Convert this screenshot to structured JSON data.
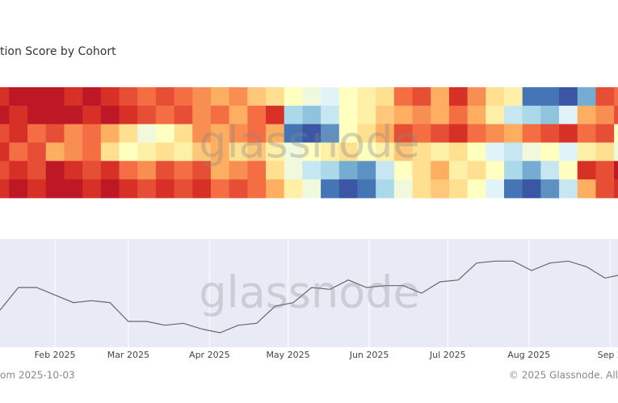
{
  "chart_data": [
    {
      "type": "heatmap",
      "title": "tion Score by Cohort",
      "x": [
        "2025-01-11",
        "2025-01-18",
        "2025-01-25",
        "2025-02-01",
        "2025-02-08",
        "2025-02-15",
        "2025-02-22",
        "2025-03-01",
        "2025-03-08",
        "2025-03-15",
        "2025-03-22",
        "2025-03-29",
        "2025-04-05",
        "2025-04-12",
        "2025-04-19",
        "2025-04-26",
        "2025-05-03",
        "2025-05-10",
        "2025-05-17",
        "2025-05-24",
        "2025-05-31",
        "2025-06-07",
        "2025-06-14",
        "2025-06-21",
        "2025-06-28",
        "2025-07-05",
        "2025-07-12",
        "2025-07-19",
        "2025-07-26",
        "2025-08-02",
        "2025-08-09",
        "2025-08-16",
        "2025-08-23",
        "2025-08-30",
        "2025-09-06"
      ],
      "xlim": [
        "2025-01-11",
        "2025-09-04"
      ],
      "zlim": [
        0,
        1
      ],
      "colorscale": [
        "#313695",
        "#4575b4",
        "#74add1",
        "#abd9e9",
        "#e0f3f8",
        "#ffffbf",
        "#fee090",
        "#fdae61",
        "#f46d43",
        "#d73027",
        "#a50026"
      ],
      "z": [
        [
          0.9,
          0.95,
          0.95,
          0.95,
          0.9,
          0.95,
          0.9,
          0.85,
          0.8,
          0.85,
          0.8,
          0.75,
          0.7,
          0.75,
          0.65,
          0.6,
          0.5,
          0.45,
          0.4,
          0.5,
          0.55,
          0.6,
          0.8,
          0.85,
          0.7,
          0.9,
          0.75,
          0.6,
          0.55,
          0.1,
          0.1,
          0.05,
          0.2,
          0.85,
          0.8
        ],
        [
          0.95,
          0.9,
          0.95,
          0.95,
          0.95,
          0.9,
          0.95,
          0.9,
          0.85,
          0.8,
          0.85,
          0.75,
          0.8,
          0.7,
          0.8,
          0.9,
          0.3,
          0.25,
          0.35,
          0.5,
          0.55,
          0.65,
          0.7,
          0.75,
          0.7,
          0.8,
          0.7,
          0.55,
          0.35,
          0.3,
          0.25,
          0.4,
          0.7,
          0.75,
          0.85
        ],
        [
          0.85,
          0.9,
          0.8,
          0.85,
          0.75,
          0.8,
          0.7,
          0.6,
          0.45,
          0.5,
          0.6,
          0.75,
          0.7,
          0.75,
          0.8,
          0.7,
          0.1,
          0.05,
          0.15,
          0.5,
          0.6,
          0.7,
          0.85,
          0.8,
          0.85,
          0.9,
          0.8,
          0.75,
          0.7,
          0.8,
          0.85,
          0.9,
          0.8,
          0.85,
          0.5
        ],
        [
          0.9,
          0.8,
          0.85,
          0.7,
          0.75,
          0.8,
          0.6,
          0.5,
          0.55,
          0.6,
          0.55,
          0.65,
          0.7,
          0.6,
          0.65,
          0.55,
          0.45,
          0.5,
          0.55,
          0.6,
          0.5,
          0.55,
          0.65,
          0.6,
          0.55,
          0.6,
          0.5,
          0.4,
          0.35,
          0.45,
          0.5,
          0.4,
          0.55,
          0.6,
          0.45
        ],
        [
          0.85,
          0.9,
          0.85,
          0.95,
          0.9,
          0.85,
          0.9,
          0.8,
          0.75,
          0.85,
          0.8,
          0.85,
          0.7,
          0.75,
          0.8,
          0.6,
          0.45,
          0.35,
          0.3,
          0.2,
          0.15,
          0.35,
          0.5,
          0.6,
          0.7,
          0.55,
          0.6,
          0.5,
          0.3,
          0.2,
          0.35,
          0.5,
          0.9,
          0.85,
          0.95
        ],
        [
          0.9,
          0.95,
          0.9,
          0.95,
          0.95,
          0.9,
          0.95,
          0.9,
          0.85,
          0.9,
          0.85,
          0.9,
          0.8,
          0.85,
          0.8,
          0.7,
          0.55,
          0.45,
          0.1,
          0.05,
          0.1,
          0.3,
          0.45,
          0.6,
          0.65,
          0.6,
          0.5,
          0.4,
          0.1,
          0.05,
          0.15,
          0.35,
          0.7,
          0.85,
          0.9
        ]
      ],
      "watermark": "glassnode"
    },
    {
      "type": "line",
      "x": [
        "2025-01-11",
        "2025-01-18",
        "2025-01-25",
        "2025-02-01",
        "2025-02-08",
        "2025-02-15",
        "2025-02-22",
        "2025-03-01",
        "2025-03-08",
        "2025-03-15",
        "2025-03-22",
        "2025-03-29",
        "2025-04-05",
        "2025-04-12",
        "2025-04-19",
        "2025-04-26",
        "2025-05-03",
        "2025-05-10",
        "2025-05-17",
        "2025-05-24",
        "2025-05-31",
        "2025-06-07",
        "2025-06-14",
        "2025-06-21",
        "2025-06-28",
        "2025-07-05",
        "2025-07-12",
        "2025-07-19",
        "2025-07-26",
        "2025-08-02",
        "2025-08-09",
        "2025-08-16",
        "2025-08-23",
        "2025-08-30",
        "2025-09-06"
      ],
      "values": [
        92000,
        104000,
        104000,
        100000,
        96000,
        97000,
        96000,
        86000,
        86000,
        84000,
        85000,
        82000,
        80000,
        84000,
        85000,
        94000,
        96000,
        104000,
        103000,
        108000,
        104000,
        105000,
        105000,
        101000,
        107000,
        108000,
        117000,
        118000,
        118000,
        113000,
        117000,
        118000,
        115000,
        109000,
        111000
      ],
      "color": "#666666",
      "xlim": [
        "2025-01-11",
        "2025-09-04"
      ],
      "ylim": [
        74000,
        128000
      ],
      "xticks": [
        {
          "value": "2025-02-01",
          "label": "Feb 2025"
        },
        {
          "value": "2025-03-01",
          "label": "Mar 2025"
        },
        {
          "value": "2025-04-01",
          "label": "Apr 2025"
        },
        {
          "value": "2025-05-01",
          "label": "May 2025"
        },
        {
          "value": "2025-06-01",
          "label": "Jun 2025"
        },
        {
          "value": "2025-07-01",
          "label": "Jul 2025"
        },
        {
          "value": "2025-08-01",
          "label": "Aug 2025"
        },
        {
          "value": "2025-09-01",
          "label": "Sep 2"
        }
      ],
      "grid": true,
      "watermark": "glassnode"
    }
  ],
  "footer": {
    "left": "om 2025-10-03",
    "right": "© 2025 Glassnode. All"
  }
}
